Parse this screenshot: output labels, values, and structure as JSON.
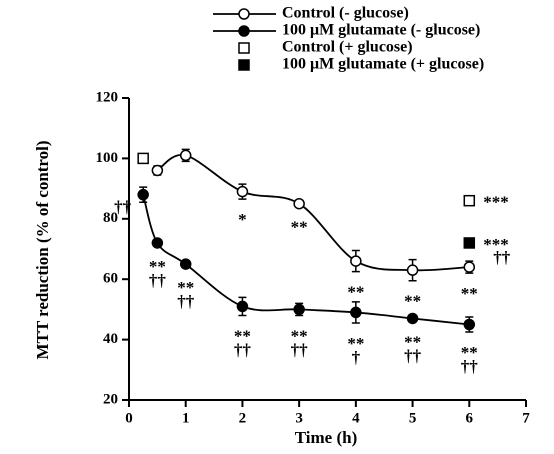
{
  "chart_data": {
    "type": "scatter",
    "x_label": "Time (h)",
    "y_label": "MTT reduction (% of control)",
    "xlim": [
      0,
      7
    ],
    "xticks": [
      0,
      1,
      2,
      3,
      4,
      5,
      6,
      7
    ],
    "ylim": [
      20,
      120
    ],
    "yticks": [
      20,
      40,
      60,
      80,
      100,
      120
    ],
    "legend": "top-right",
    "series": [
      {
        "name": "Control (- glucose)",
        "color": "#000000",
        "marker": "circle",
        "filled": false,
        "line": true,
        "x": [
          0.5,
          1,
          2,
          3,
          4,
          5,
          6
        ],
        "values": [
          96,
          101,
          89,
          85,
          66,
          63,
          64
        ],
        "errors": [
          1.5,
          2,
          2.5,
          1,
          3.5,
          3.5,
          2
        ],
        "annotations": [
          null,
          null,
          [
            "*"
          ],
          [
            "**"
          ],
          [
            "**"
          ],
          [
            "**"
          ],
          [
            "**"
          ]
        ]
      },
      {
        "name": "100 μM glutamate (- glucose)",
        "color": "#000000",
        "marker": "circle",
        "filled": true,
        "line": true,
        "x": [
          0.25,
          0.5,
          1,
          2,
          3,
          4,
          5,
          6
        ],
        "values": [
          88,
          72,
          65,
          51,
          50,
          49,
          47,
          45
        ],
        "errors": [
          2.5,
          1,
          1,
          3,
          2,
          3.5,
          1,
          2.5
        ],
        "annotations": [
          [
            "††"
          ],
          [
            "**",
            "††"
          ],
          [
            "**",
            "††"
          ],
          [
            "**",
            "††"
          ],
          [
            "**",
            "††"
          ],
          [
            "**",
            "†"
          ],
          [
            "**",
            "††"
          ],
          [
            "**",
            "††"
          ]
        ]
      },
      {
        "name": "Control (+ glucose)",
        "color": "#000000",
        "marker": "square",
        "filled": false,
        "line": false,
        "x": [
          0.25,
          6
        ],
        "values": [
          100,
          86
        ],
        "annotations": [
          null,
          [
            "***"
          ]
        ]
      },
      {
        "name": "100 μM glutamate (+ glucose)",
        "color": "#000000",
        "marker": "square",
        "filled": true,
        "line": false,
        "x": [
          6
        ],
        "values": [
          72
        ],
        "annotations": [
          [
            "***",
            "††"
          ]
        ]
      }
    ]
  }
}
